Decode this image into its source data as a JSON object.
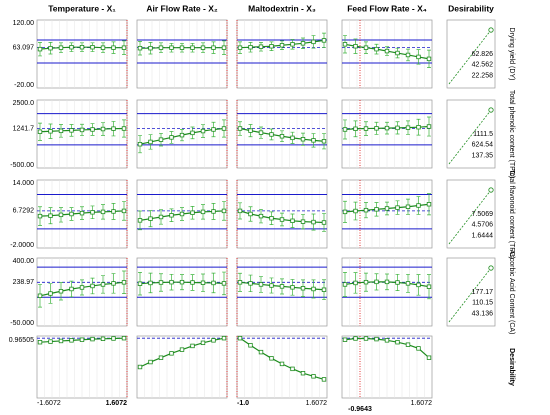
{
  "chart_data": {
    "type": "profiler",
    "line_color": "#1e8c1e",
    "error_color": "#3cb43c",
    "limit_color": "#1a1acc",
    "current_color": "#e02020",
    "desirability_title": "Desirability",
    "factors": [
      {
        "name": "Temperature - X₁",
        "xlim": [
          -1.6072,
          1.6072
        ],
        "current": 1.6072,
        "xticks": [
          -1.6072,
          1.6072
        ]
      },
      {
        "name": "Air Flow Rate - X₂",
        "xlim": [
          -1.6072,
          1.6072
        ],
        "current": 1.6072,
        "xticks": []
      },
      {
        "name": "Maltodextrin - X₃",
        "xlim": [
          -1.0,
          1.6072
        ],
        "current": -1.0,
        "xticks": [
          {
            "value": -1.0,
            "label": "-1.0"
          },
          1.6072
        ]
      },
      {
        "name": "Feed Flow Rate - X₄",
        "xlim": [
          -1.6072,
          1.6072
        ],
        "current": -0.9643,
        "xticks": [
          -0.9643,
          1.6072
        ]
      }
    ],
    "rows": [
      {
        "name": "Drying yield (DY)",
        "ylim": [
          -20,
          120
        ],
        "yticks": [
          {
            "value": -20,
            "label": "-20.00"
          },
          {
            "value": 120,
            "label": "120.00"
          }
        ],
        "current": 63.097,
        "limits": [
          31.5,
          78.8
        ],
        "desirability_ticks": [
          62.826,
          42.562,
          22.258
        ],
        "panels": [
          {
            "values": [
              60,
              62,
              63,
              64,
              64,
              64,
              63,
              63,
              63
            ],
            "errors": [
              14,
              12,
              10,
              9,
              9,
              9,
              10,
              12,
              14
            ]
          },
          {
            "values": [
              62,
              62,
              63,
              63,
              63,
              63,
              63,
              63,
              63
            ],
            "errors": [
              14,
              12,
              10,
              9,
              9,
              9,
              10,
              12,
              14
            ]
          },
          {
            "values": [
              63,
              64,
              65,
              66,
              68,
              70,
              72,
              75,
              78
            ],
            "errors": [
              12,
              10,
              9,
              9,
              9,
              10,
              11,
              13,
              15
            ]
          },
          {
            "values": [
              70,
              66,
              63,
              60,
              56,
              52,
              48,
              44,
              40
            ],
            "errors": [
              18,
              15,
              12,
              10,
              9,
              10,
              12,
              15,
              18
            ]
          }
        ]
      },
      {
        "name": "Total phenolic content (TPC)",
        "ylim": [
          -500,
          2500
        ],
        "yticks": [
          {
            "value": -500,
            "label": "-500.00"
          },
          {
            "value": 2500,
            "label": "2500.0"
          }
        ],
        "current": 1241.7,
        "limits": [
          520,
          1900
        ],
        "desirability_ticks": [
          1111.5,
          624.54,
          137.35
        ],
        "panels": [
          {
            "values": [
              1100,
              1120,
              1140,
              1160,
              1180,
              1200,
              1220,
              1235,
              1242
            ],
            "errors": [
              380,
              320,
              280,
              260,
              250,
              260,
              280,
              320,
              380
            ]
          },
          {
            "values": [
              550,
              650,
              750,
              850,
              950,
              1050,
              1130,
              1200,
              1242
            ],
            "errors": [
              380,
              320,
              280,
              260,
              250,
              260,
              280,
              320,
              380
            ]
          },
          {
            "values": [
              1242,
              1150,
              1060,
              980,
              900,
              830,
              770,
              720,
              680
            ],
            "errors": [
              300,
              270,
              250,
              240,
              240,
              250,
              270,
              300,
              340
            ]
          },
          {
            "values": [
              1200,
              1230,
              1240,
              1250,
              1260,
              1270,
              1280,
              1300,
              1330
            ],
            "errors": [
              420,
              350,
              300,
              270,
              260,
              270,
              300,
              350,
              420
            ]
          }
        ]
      },
      {
        "name": "Total flavonoid content (TFC)",
        "ylim": [
          -2,
          14
        ],
        "yticks": [
          {
            "value": -2,
            "label": "-2.0000"
          },
          {
            "value": 14,
            "label": "14.000"
          }
        ],
        "current": 6.7292,
        "limits": [
          2.5,
          10.6
        ],
        "desirability_ticks": [
          7.5069,
          4.5706,
          1.6444
        ],
        "panels": [
          {
            "values": [
              5.5,
              5.6,
              5.8,
              6.0,
              6.2,
              6.4,
              6.5,
              6.6,
              6.73
            ],
            "errors": [
              2.2,
              1.9,
              1.7,
              1.5,
              1.5,
              1.5,
              1.7,
              1.9,
              2.2
            ]
          },
          {
            "values": [
              4.5,
              4.9,
              5.3,
              5.7,
              6.0,
              6.3,
              6.5,
              6.6,
              6.73
            ],
            "errors": [
              2.2,
              1.9,
              1.7,
              1.5,
              1.5,
              1.5,
              1.7,
              1.9,
              2.2
            ]
          },
          {
            "values": [
              6.73,
              6.0,
              5.5,
              5.0,
              4.7,
              4.4,
              4.2,
              4.1,
              4.0
            ],
            "errors": [
              1.9,
              1.7,
              1.6,
              1.5,
              1.5,
              1.6,
              1.7,
              1.9,
              2.1
            ]
          },
          {
            "values": [
              6.5,
              6.7,
              6.9,
              7.1,
              7.3,
              7.5,
              7.7,
              8.0,
              8.3
            ],
            "errors": [
              2.5,
              2.1,
              1.8,
              1.6,
              1.5,
              1.6,
              1.8,
              2.1,
              2.5
            ]
          }
        ]
      },
      {
        "name": "Ascorbic Acid Content (CA)",
        "ylim": [
          -50,
          400
        ],
        "yticks": [
          {
            "value": -50,
            "label": "-50.000"
          },
          {
            "value": 400,
            "label": "400.00"
          }
        ],
        "current": 238.97,
        "limits": [
          140,
          340
        ],
        "desirability_ticks": [
          177.17,
          110.15,
          43.136
        ],
        "panels": [
          {
            "values": [
              150,
              165,
              180,
              195,
              205,
              215,
              225,
              232,
              239
            ],
            "errors": [
              75,
              65,
              58,
              52,
              50,
              52,
              58,
              65,
              75
            ]
          },
          {
            "values": [
              230,
              235,
              238,
              240,
              240,
              238,
              236,
              235,
              232
            ],
            "errors": [
              75,
              65,
              58,
              52,
              50,
              52,
              58,
              65,
              75
            ]
          },
          {
            "values": [
              239,
              232,
              225,
              218,
              212,
              206,
              200,
              195,
              190
            ],
            "errors": [
              60,
              55,
              52,
              50,
              50,
              52,
              55,
              60,
              66
            ]
          },
          {
            "values": [
              225,
              235,
              240,
              242,
              242,
              238,
              232,
              222,
              210
            ],
            "errors": [
              80,
              68,
              60,
              54,
              52,
              54,
              60,
              68,
              80
            ]
          }
        ]
      },
      {
        "name": "Desirability",
        "ylim": [
          0,
          1
        ],
        "yticks": [],
        "current": 0.96505,
        "panels": [
          {
            "values": [
              0.9,
              0.91,
              0.92,
              0.93,
              0.94,
              0.95,
              0.955,
              0.96,
              0.965
            ]
          },
          {
            "values": [
              0.5,
              0.58,
              0.65,
              0.72,
              0.78,
              0.84,
              0.89,
              0.93,
              0.965
            ]
          },
          {
            "values": [
              0.965,
              0.85,
              0.74,
              0.64,
              0.55,
              0.47,
              0.4,
              0.35,
              0.3
            ]
          },
          {
            "values": [
              0.94,
              0.96,
              0.96,
              0.95,
              0.93,
              0.9,
              0.86,
              0.8,
              0.65
            ]
          }
        ]
      }
    ]
  }
}
